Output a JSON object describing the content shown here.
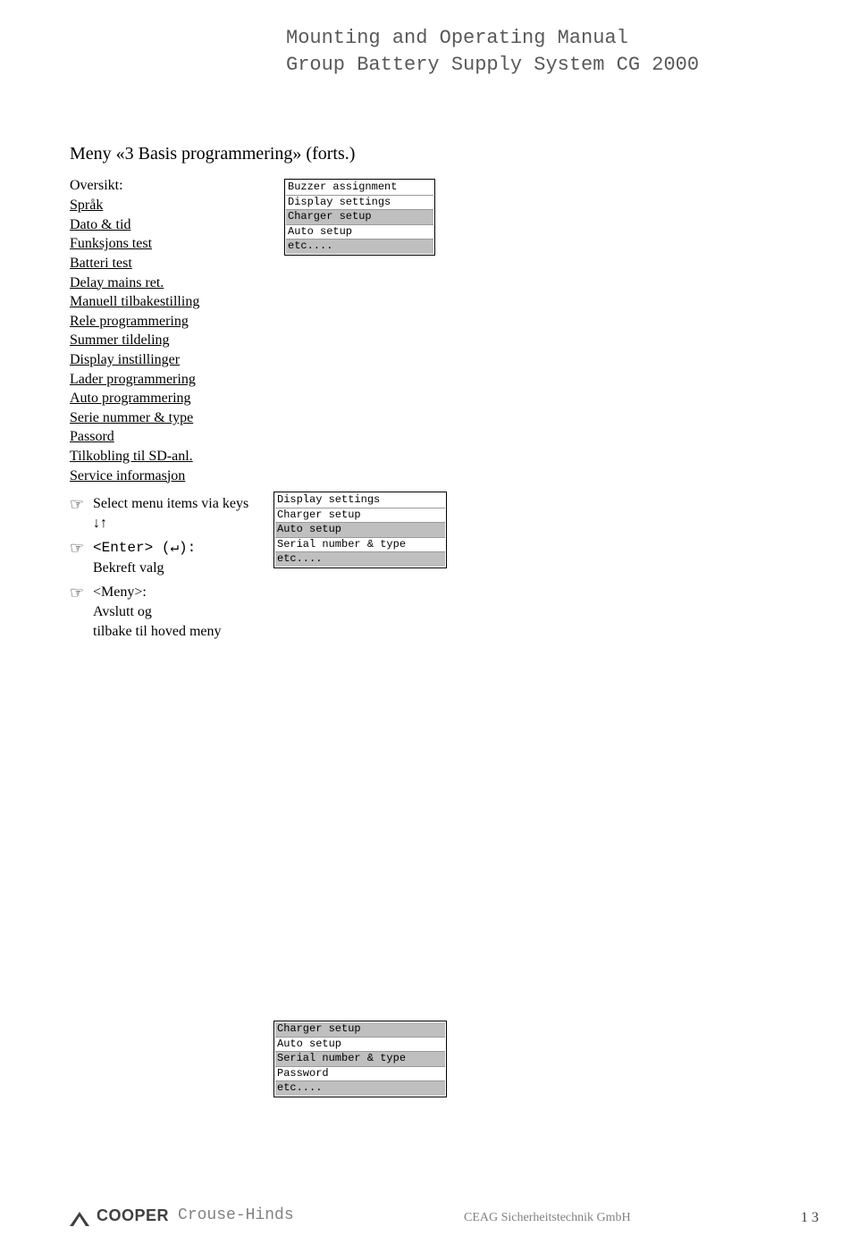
{
  "header": {
    "line1": "Mounting and Operating Manual",
    "line2": "Group Battery Supply System CG 2000"
  },
  "section_title": "Meny «3 Basis programmering» (forts.)",
  "overview": {
    "label": "Oversikt:",
    "items": [
      "Språk",
      "Dato & tid",
      "Funksjons test",
      "Batteri test",
      "Delay mains ret.",
      "Manuell tilbakestilling",
      "Rele programmering",
      "Summer tildeling",
      "Display instillinger",
      "Lader programmering",
      "Auto programmering",
      "Serie nummer & type",
      "Passord",
      "Tilkobling til SD-anl.",
      "Service informasjon"
    ]
  },
  "instructions": {
    "select_menu": "Select menu items via keys",
    "arrows": "↓↑",
    "enter_line": "<Enter>  (↵):",
    "confirm": "Bekreft valg",
    "meny_line": "<Meny>:",
    "exit1": "Avslutt og",
    "exit2": "tilbake til hoved meny"
  },
  "lcd1": {
    "rows": [
      {
        "text": "Buzzer assignment",
        "hl": false
      },
      {
        "text": "Display settings",
        "hl": false
      },
      {
        "text": "Charger setup",
        "hl": true
      },
      {
        "text": "Auto setup",
        "hl": false
      },
      {
        "text": "etc....",
        "hl": true
      }
    ]
  },
  "lcd2": {
    "rows": [
      {
        "text": "Display settings",
        "hl": false
      },
      {
        "text": "Charger setup",
        "hl": false
      },
      {
        "text": "Auto setup",
        "hl": true
      },
      {
        "text": "Serial number & type",
        "hl": false
      },
      {
        "text": "etc....",
        "hl": true
      }
    ]
  },
  "lcd3": {
    "rows": [
      {
        "text": "Charger setup",
        "hl": true
      },
      {
        "text": "Auto setup",
        "hl": false
      },
      {
        "text": "Serial number & type",
        "hl": true
      },
      {
        "text": "Password",
        "hl": false
      },
      {
        "text": "etc....",
        "hl": true
      }
    ]
  },
  "footer": {
    "cooper": "COOPER",
    "crouse": "Crouse-Hinds",
    "right": "CEAG Sicherheitstechnik GmbH",
    "page": "13"
  }
}
